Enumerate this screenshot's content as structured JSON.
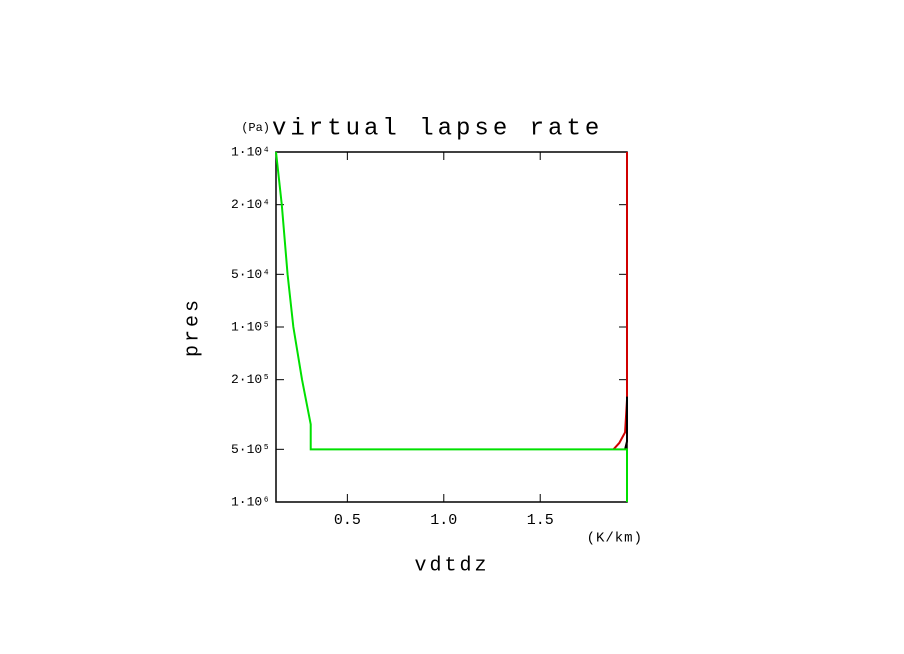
{
  "chart_data": {
    "type": "line",
    "title": "virtual lapse rate",
    "y_unit": "(Pa)",
    "x_label": "vdtdz",
    "x_unit": "(K/km)",
    "y_label": "pres",
    "xlim": [
      0.13,
      1.95
    ],
    "xticks": [
      0.5,
      {
        "value": 1.0,
        "label": "1.0"
      },
      1.5
    ],
    "ylim": [
      10000,
      1000000
    ],
    "y_log": true,
    "y_reversed": true,
    "yticks": [
      {
        "value": 10000,
        "label": "1·10⁴"
      },
      {
        "value": 20000,
        "label": "2·10⁴"
      },
      {
        "value": 50000,
        "label": "5·10⁴"
      },
      {
        "value": 100000,
        "label": "1·10⁵"
      },
      {
        "value": 200000,
        "label": "2·10⁵"
      },
      {
        "value": 500000,
        "label": "5·10⁵"
      },
      {
        "value": 1000000,
        "label": "1·10⁶"
      }
    ],
    "series": [
      {
        "color": "#d00000",
        "x": [
          1.95,
          1.95,
          1.94,
          1.91,
          1.88
        ],
        "values": [
          10000,
          260000,
          400000,
          460000,
          500000
        ]
      },
      {
        "color": "#000000",
        "x": [
          1.95,
          1.95,
          1.94
        ],
        "values": [
          250000,
          450000,
          500000
        ]
      },
      {
        "color": "#00e000",
        "x": [
          0.13,
          0.16,
          0.19,
          0.22,
          0.265,
          0.31,
          0.31,
          1.95,
          1.95
        ],
        "values": [
          10000,
          20000,
          50000,
          100000,
          200000,
          360000,
          500000,
          500000,
          1000000
        ]
      }
    ]
  }
}
